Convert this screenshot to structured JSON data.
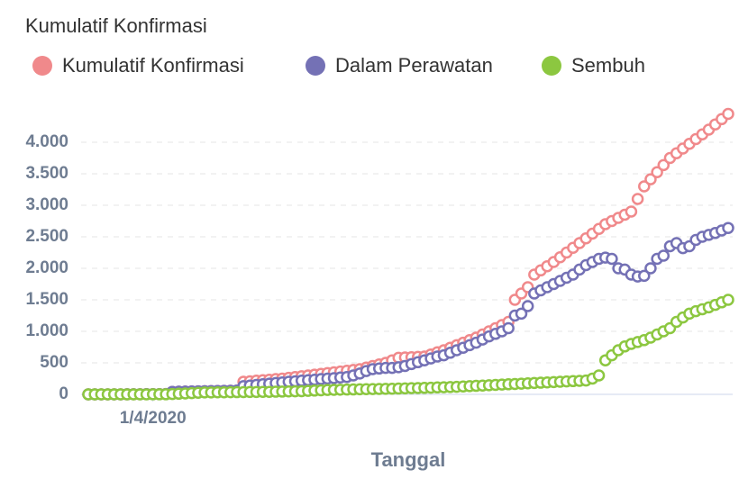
{
  "chart_data": {
    "type": "line",
    "title": "Kumulatif Konfirmasi",
    "x_label": "Tanggal",
    "categories": [
      null,
      null,
      null,
      null,
      null,
      null,
      null,
      null,
      null,
      null,
      "1/4/2020",
      null,
      null,
      null,
      null,
      null,
      null,
      null,
      null,
      null,
      null,
      null,
      null,
      null,
      null,
      null,
      null,
      null,
      null,
      null,
      null,
      null,
      null,
      null,
      null,
      null,
      null,
      null,
      null,
      null,
      null,
      null,
      null,
      null,
      null,
      null,
      null,
      null,
      null,
      null,
      null,
      null,
      null,
      null,
      null,
      null,
      null,
      null,
      null,
      null,
      null,
      null,
      null,
      null,
      null,
      null,
      null,
      null,
      null,
      null,
      null,
      null,
      null,
      null,
      null,
      null,
      null,
      null,
      null,
      null,
      null,
      null,
      null,
      null,
      null,
      null,
      null,
      null,
      null,
      null,
      null,
      null,
      null,
      null,
      null,
      null,
      null,
      null,
      null,
      null
    ],
    "series": [
      {
        "name": "Kumulatif Konfirmasi",
        "color": "#f0898b",
        "values": [
          0,
          0,
          0,
          0,
          0,
          0,
          1,
          2,
          2,
          3,
          4,
          4,
          5,
          40,
          42,
          44,
          46,
          48,
          50,
          52,
          54,
          56,
          58,
          60,
          200,
          208,
          217,
          225,
          233,
          242,
          250,
          263,
          275,
          288,
          300,
          313,
          325,
          338,
          350,
          363,
          375,
          388,
          400,
          425,
          450,
          475,
          500,
          540,
          580,
          585,
          590,
          595,
          600,
          633,
          667,
          700,
          740,
          780,
          820,
          860,
          900,
          950,
          1000,
          1050,
          1100,
          1150,
          1500,
          1600,
          1700,
          1900,
          1967,
          2033,
          2100,
          2175,
          2250,
          2325,
          2400,
          2475,
          2550,
          2625,
          2700,
          2750,
          2800,
          2850,
          2900,
          3100,
          3300,
          3413,
          3525,
          3638,
          3750,
          3825,
          3900,
          3975,
          4050,
          4125,
          4200,
          4283,
          4367,
          4450
        ]
      },
      {
        "name": "Dalam Perawatan",
        "color": "#7471b5",
        "values": [
          0,
          0,
          0,
          0,
          0,
          0,
          1,
          2,
          2,
          3,
          4,
          4,
          5,
          40,
          42,
          44,
          46,
          48,
          50,
          52,
          54,
          56,
          58,
          60,
          130,
          140,
          150,
          160,
          170,
          180,
          190,
          200,
          208,
          217,
          225,
          233,
          242,
          250,
          258,
          267,
          275,
          300,
          330,
          370,
          400,
          410,
          420,
          420,
          430,
          450,
          480,
          510,
          540,
          570,
          600,
          620,
          660,
          700,
          740,
          780,
          820,
          870,
          920,
          960,
          1000,
          1050,
          1250,
          1280,
          1400,
          1600,
          1650,
          1700,
          1750,
          1800,
          1850,
          1900,
          1980,
          2050,
          2100,
          2150,
          2170,
          2150,
          2000,
          1980,
          1900,
          1870,
          1880,
          2000,
          2150,
          2200,
          2350,
          2400,
          2320,
          2350,
          2450,
          2500,
          2530,
          2560,
          2600,
          2640
        ]
      },
      {
        "name": "Sembuh",
        "color": "#8cc740",
        "values": [
          0,
          0,
          0,
          0,
          0,
          0,
          0,
          0,
          0,
          0,
          1,
          1,
          1,
          5,
          10,
          15,
          20,
          25,
          30,
          31,
          32,
          33,
          34,
          35,
          36,
          37,
          38,
          39,
          40,
          42,
          44,
          46,
          48,
          50,
          55,
          60,
          65,
          70,
          72,
          74,
          76,
          78,
          80,
          82,
          84,
          86,
          88,
          90,
          92,
          95,
          98,
          100,
          103,
          106,
          110,
          113,
          116,
          120,
          125,
          130,
          135,
          140,
          145,
          150,
          155,
          160,
          165,
          170,
          175,
          180,
          185,
          190,
          195,
          200,
          205,
          210,
          215,
          220,
          250,
          300,
          540,
          620,
          700,
          760,
          800,
          830,
          860,
          900,
          950,
          1000,
          1050,
          1150,
          1220,
          1280,
          1320,
          1350,
          1380,
          1420,
          1460,
          1500
        ]
      }
    ],
    "ylim": [
      0,
      4600
    ],
    "yticks": [
      0,
      500,
      {
        "value": 1000,
        "label": "1.000"
      },
      {
        "value": 1500,
        "label": "1.500"
      },
      {
        "value": 2000,
        "label": "2.000"
      },
      {
        "value": 2500,
        "label": "2.500"
      },
      {
        "value": 3000,
        "label": "3.000"
      },
      {
        "value": 3500,
        "label": "3.500"
      },
      {
        "value": 4000,
        "label": "4.000"
      }
    ],
    "grid": true
  }
}
